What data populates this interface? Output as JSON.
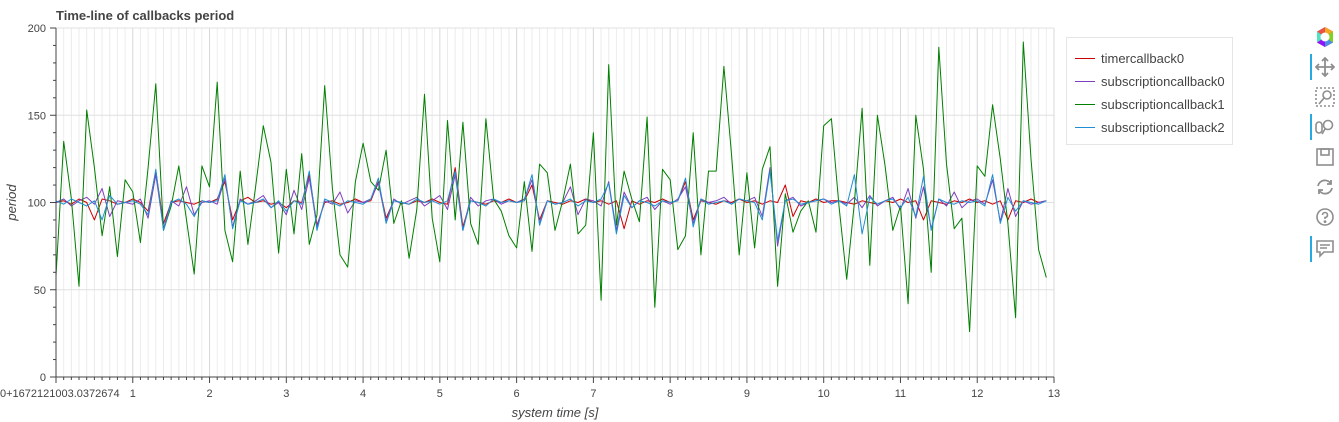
{
  "chart_data": {
    "type": "line",
    "title": "Time-line of callbacks period",
    "xlabel": "system time [s]",
    "ylabel": "period",
    "xlim": [
      0,
      13
    ],
    "ylim": [
      0,
      200
    ],
    "x_ticks": [
      0,
      1,
      2,
      3,
      4,
      5,
      6,
      7,
      8,
      9,
      10,
      11,
      12,
      13
    ],
    "x_tick_labels": [
      "0+1672121003.0372674",
      "1",
      "2",
      "3",
      "4",
      "5",
      "6",
      "7",
      "8",
      "9",
      "10",
      "11",
      "12",
      "13"
    ],
    "y_ticks": [
      0,
      50,
      100,
      150,
      200
    ],
    "y_tick_labels": [
      "0",
      "50",
      "100",
      "150",
      "200"
    ],
    "grid": true,
    "legend_position": "top-right, outside plot",
    "series": [
      {
        "name": "timercallback0",
        "color": "#cc0000",
        "x": [
          0.0,
          0.1,
          0.2,
          0.3,
          0.4,
          0.5,
          0.6,
          0.7,
          0.8,
          0.9,
          1.0,
          1.1,
          1.2,
          1.3,
          1.4,
          1.5,
          1.6,
          1.7,
          1.8,
          1.9,
          2.0,
          2.1,
          2.2,
          2.3,
          2.4,
          2.5,
          2.6,
          2.7,
          2.8,
          2.9,
          3.0,
          3.1,
          3.2,
          3.3,
          3.4,
          3.5,
          3.6,
          3.7,
          3.8,
          3.9,
          4.0,
          4.1,
          4.2,
          4.3,
          4.4,
          4.5,
          4.6,
          4.7,
          4.8,
          4.9,
          5.0,
          5.1,
          5.2,
          5.3,
          5.4,
          5.5,
          5.6,
          5.7,
          5.8,
          5.9,
          6.0,
          6.1,
          6.2,
          6.3,
          6.4,
          6.5,
          6.6,
          6.7,
          6.8,
          6.9,
          7.0,
          7.1,
          7.2,
          7.3,
          7.4,
          7.5,
          7.6,
          7.7,
          7.8,
          7.9,
          8.0,
          8.1,
          8.2,
          8.3,
          8.4,
          8.5,
          8.6,
          8.7,
          8.8,
          8.9,
          9.0,
          9.1,
          9.2,
          9.3,
          9.4,
          9.5,
          9.6,
          9.7,
          9.8,
          9.9,
          10.0,
          10.1,
          10.2,
          10.3,
          10.4,
          10.5,
          10.6,
          10.7,
          10.8,
          10.9,
          11.0,
          11.1,
          11.2,
          11.3,
          11.4,
          11.5,
          11.6,
          11.7,
          11.8,
          11.9,
          12.0,
          12.1,
          12.2,
          12.3,
          12.4,
          12.5,
          12.6,
          12.7,
          12.8,
          12.9
        ],
        "values": [
          100,
          101,
          99,
          102,
          100,
          90,
          102,
          101,
          99,
          100,
          102,
          100,
          95,
          118,
          88,
          100,
          101,
          100,
          99,
          101,
          100,
          102,
          112,
          90,
          101,
          103,
          100,
          101,
          99,
          100,
          97,
          101,
          100,
          116,
          87,
          100,
          101,
          99,
          100,
          102,
          100,
          101,
          112,
          91,
          101,
          100,
          99,
          101,
          100,
          102,
          100,
          99,
          120,
          86,
          101,
          100,
          99,
          101,
          100,
          102,
          100,
          101,
          110,
          90,
          101,
          100,
          99,
          101,
          100,
          102,
          100,
          101,
          99,
          101,
          85,
          101,
          99,
          101,
          100,
          102,
          100,
          101,
          112,
          90,
          101,
          100,
          99,
          101,
          100,
          102,
          100,
          101,
          99,
          101,
          100,
          110,
          92,
          101,
          100,
          102,
          100,
          101,
          101,
          100,
          99,
          101,
          100,
          99,
          101,
          100,
          102,
          100,
          101,
          90,
          101,
          100,
          99,
          101,
          100,
          102,
          100,
          101,
          99,
          101,
          90,
          101,
          100,
          102,
          100,
          101
        ]
      },
      {
        "name": "subscriptioncallback0",
        "color": "#7f3fbf",
        "x": [
          0.0,
          0.1,
          0.2,
          0.3,
          0.4,
          0.5,
          0.6,
          0.7,
          0.8,
          0.9,
          1.0,
          1.1,
          1.2,
          1.3,
          1.4,
          1.5,
          1.6,
          1.7,
          1.8,
          1.9,
          2.0,
          2.1,
          2.2,
          2.3,
          2.4,
          2.5,
          2.6,
          2.7,
          2.8,
          2.9,
          3.0,
          3.1,
          3.2,
          3.3,
          3.4,
          3.5,
          3.6,
          3.7,
          3.8,
          3.9,
          4.0,
          4.1,
          4.2,
          4.3,
          4.4,
          4.5,
          4.6,
          4.7,
          4.8,
          4.9,
          5.0,
          5.1,
          5.2,
          5.3,
          5.4,
          5.5,
          5.6,
          5.7,
          5.8,
          5.9,
          6.0,
          6.1,
          6.2,
          6.3,
          6.4,
          6.5,
          6.6,
          6.7,
          6.8,
          6.9,
          7.0,
          7.1,
          7.2,
          7.3,
          7.4,
          7.5,
          7.6,
          7.7,
          7.8,
          7.9,
          8.0,
          8.1,
          8.2,
          8.3,
          8.4,
          8.5,
          8.6,
          8.7,
          8.8,
          8.9,
          9.0,
          9.1,
          9.2,
          9.3,
          9.4,
          9.5,
          9.6,
          9.7,
          9.8,
          9.9,
          10.0,
          10.1,
          10.2,
          10.3,
          10.4,
          10.5,
          10.6,
          10.7,
          10.8,
          10.9,
          11.0,
          11.1,
          11.2,
          11.3,
          11.4,
          11.5,
          11.6,
          11.7,
          11.8,
          11.9,
          12.0,
          12.1,
          12.2,
          12.3,
          12.4,
          12.5,
          12.6,
          12.7,
          12.8,
          12.9
        ],
        "values": [
          100,
          102,
          98,
          101,
          103,
          99,
          108,
          92,
          101,
          100,
          99,
          102,
          91,
          116,
          85,
          101,
          98,
          109,
          93,
          100,
          101,
          99,
          114,
          86,
          102,
          99,
          101,
          104,
          97,
          100,
          93,
          107,
          96,
          114,
          86,
          101,
          99,
          106,
          94,
          101,
          100,
          102,
          111,
          89,
          102,
          99,
          101,
          103,
          98,
          101,
          104,
          96,
          116,
          84,
          103,
          98,
          101,
          102,
          99,
          101,
          100,
          102,
          113,
          88,
          101,
          99,
          100,
          109,
          93,
          102,
          101,
          98,
          112,
          84,
          106,
          97,
          101,
          103,
          96,
          101,
          99,
          102,
          109,
          88,
          102,
          100,
          101,
          103,
          99,
          102,
          101,
          103,
          92,
          120,
          75,
          101,
          103,
          98,
          100,
          101,
          102,
          100,
          101,
          99,
          103,
          97,
          104,
          98,
          101,
          103,
          96,
          108,
          91,
          109,
          85,
          102,
          98,
          106,
          97,
          101,
          102,
          99,
          113,
          89,
          108,
          92,
          101,
          99,
          100,
          101
        ]
      },
      {
        "name": "subscriptioncallback1",
        "color": "#008000",
        "x": [
          0.0,
          0.1,
          0.2,
          0.3,
          0.4,
          0.5,
          0.6,
          0.7,
          0.8,
          0.9,
          1.0,
          1.1,
          1.2,
          1.3,
          1.4,
          1.5,
          1.6,
          1.7,
          1.8,
          1.9,
          2.0,
          2.1,
          2.2,
          2.3,
          2.4,
          2.5,
          2.6,
          2.7,
          2.8,
          2.9,
          3.0,
          3.1,
          3.2,
          3.3,
          3.4,
          3.5,
          3.6,
          3.7,
          3.8,
          3.9,
          4.0,
          4.1,
          4.2,
          4.3,
          4.4,
          4.5,
          4.6,
          4.7,
          4.8,
          4.9,
          5.0,
          5.1,
          5.2,
          5.3,
          5.4,
          5.5,
          5.6,
          5.7,
          5.8,
          5.9,
          6.0,
          6.1,
          6.2,
          6.3,
          6.4,
          6.5,
          6.6,
          6.7,
          6.8,
          6.9,
          7.0,
          7.1,
          7.2,
          7.3,
          7.4,
          7.5,
          7.6,
          7.7,
          7.8,
          7.9,
          8.0,
          8.1,
          8.2,
          8.3,
          8.4,
          8.5,
          8.6,
          8.7,
          8.8,
          8.9,
          9.0,
          9.1,
          9.2,
          9.3,
          9.4,
          9.5,
          9.6,
          9.7,
          9.8,
          9.9,
          10.0,
          10.1,
          10.2,
          10.3,
          10.4,
          10.5,
          10.6,
          10.7,
          10.8,
          10.9,
          11.0,
          11.1,
          11.2,
          11.3,
          11.4,
          11.5,
          11.6,
          11.7,
          11.8,
          11.9,
          12.0,
          12.1,
          12.2,
          12.3,
          12.4,
          12.5,
          12.6,
          12.7,
          12.8,
          12.9
        ],
        "values": [
          58,
          135,
          102,
          52,
          153,
          120,
          81,
          109,
          69,
          113,
          106,
          77,
          120,
          168,
          84,
          98,
          121,
          90,
          59,
          121,
          109,
          169,
          84,
          66,
          118,
          76,
          109,
          144,
          123,
          71,
          119,
          82,
          128,
          76,
          93,
          167,
          108,
          70,
          63,
          112,
          134,
          112,
          107,
          130,
          88,
          101,
          68,
          96,
          162,
          91,
          66,
          147,
          90,
          146,
          88,
          76,
          148,
          102,
          95,
          81,
          74,
          112,
          72,
          122,
          117,
          84,
          101,
          122,
          82,
          87,
          140,
          44,
          179,
          87,
          118,
          102,
          89,
          149,
          40,
          119,
          113,
          73,
          81,
          140,
          70,
          118,
          118,
          178,
          127,
          70,
          117,
          74,
          119,
          132,
          52,
          105,
          83,
          95,
          101,
          83,
          144,
          148,
          98,
          56,
          100,
          154,
          64,
          150,
          121,
          84,
          98,
          42,
          150,
          119,
          60,
          189,
          122,
          85,
          91,
          26,
          121,
          115,
          156,
          125,
          88,
          34,
          192,
          125,
          73,
          57
        ]
      },
      {
        "name": "subscriptioncallback2",
        "color": "#1f8fd1",
        "x": [
          0.0,
          0.1,
          0.2,
          0.3,
          0.4,
          0.5,
          0.6,
          0.7,
          0.8,
          0.9,
          1.0,
          1.1,
          1.2,
          1.3,
          1.4,
          1.5,
          1.6,
          1.7,
          1.8,
          1.9,
          2.0,
          2.1,
          2.2,
          2.3,
          2.4,
          2.5,
          2.6,
          2.7,
          2.8,
          2.9,
          3.0,
          3.1,
          3.2,
          3.3,
          3.4,
          3.5,
          3.6,
          3.7,
          3.8,
          3.9,
          4.0,
          4.1,
          4.2,
          4.3,
          4.4,
          4.5,
          4.6,
          4.7,
          4.8,
          4.9,
          5.0,
          5.1,
          5.2,
          5.3,
          5.4,
          5.5,
          5.6,
          5.7,
          5.8,
          5.9,
          6.0,
          6.1,
          6.2,
          6.3,
          6.4,
          6.5,
          6.6,
          6.7,
          6.8,
          6.9,
          7.0,
          7.1,
          7.2,
          7.3,
          7.4,
          7.5,
          7.6,
          7.7,
          7.8,
          7.9,
          8.0,
          8.1,
          8.2,
          8.3,
          8.4,
          8.5,
          8.6,
          8.7,
          8.8,
          8.9,
          9.0,
          9.1,
          9.2,
          9.3,
          9.4,
          9.5,
          9.6,
          9.7,
          9.8,
          9.9,
          10.0,
          10.1,
          10.2,
          10.3,
          10.4,
          10.5,
          10.6,
          10.7,
          10.8,
          10.9,
          11.0,
          11.1,
          11.2,
          11.3,
          11.4,
          11.5,
          11.6,
          11.7,
          11.8,
          11.9,
          12.0,
          12.1,
          12.2,
          12.3,
          12.4,
          12.5,
          12.6,
          12.7,
          12.8,
          12.9
        ],
        "values": [
          101,
          99,
          102,
          100,
          98,
          101,
          90,
          104,
          99,
          100,
          101,
          99,
          93,
          119,
          84,
          100,
          102,
          99,
          92,
          101,
          100,
          101,
          116,
          85,
          101,
          99,
          100,
          102,
          97,
          101,
          95,
          101,
          99,
          118,
          84,
          102,
          100,
          98,
          101,
          100,
          99,
          102,
          114,
          88,
          101,
          100,
          99,
          102,
          100,
          101,
          99,
          101,
          118,
          84,
          101,
          100,
          98,
          102,
          100,
          101,
          100,
          101,
          116,
          87,
          101,
          99,
          100,
          102,
          98,
          101,
          100,
          102,
          111,
          82,
          104,
          97,
          101,
          100,
          98,
          101,
          100,
          101,
          114,
          86,
          102,
          99,
          100,
          101,
          99,
          102,
          101,
          100,
          90,
          118,
          78,
          101,
          102,
          99,
          100,
          101,
          102,
          99,
          101,
          98,
          116,
          82,
          103,
          99,
          101,
          102,
          97,
          103,
          92,
          115,
          84,
          102,
          100,
          99,
          101,
          100,
          101,
          98,
          116,
          88,
          103,
          95,
          101,
          100,
          99,
          101
        ]
      }
    ]
  },
  "toolbar": {
    "tools": [
      {
        "icon": "bokeh-logo-icon",
        "active": false
      },
      {
        "icon": "pan-icon",
        "active": true
      },
      {
        "icon": "box-zoom-icon",
        "active": false
      },
      {
        "icon": "wheel-zoom-icon",
        "active": true
      },
      {
        "icon": "save-icon",
        "active": false
      },
      {
        "icon": "reset-icon",
        "active": false
      },
      {
        "icon": "help-icon",
        "active": false
      },
      {
        "icon": "hover-icon",
        "active": true
      }
    ]
  }
}
